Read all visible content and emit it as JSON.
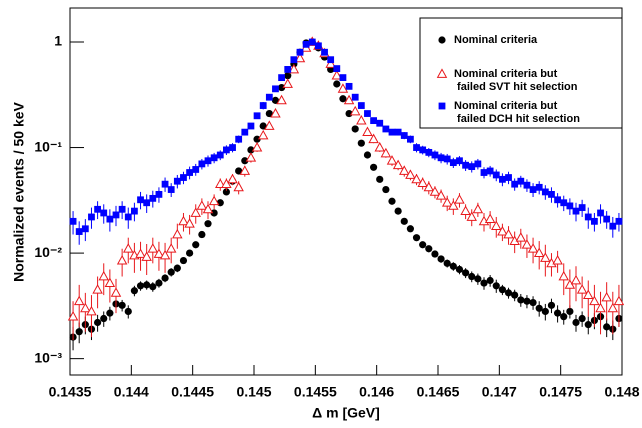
{
  "chart_data": {
    "type": "scatter",
    "x_label": "Δ m [GeV]",
    "y_label": "Normalized events / 50 keV",
    "x": [
      0.143525,
      0.143575,
      0.143625,
      0.143675,
      0.143725,
      0.143775,
      0.143825,
      0.143875,
      0.143925,
      0.143975,
      0.144025,
      0.144075,
      0.144125,
      0.144175,
      0.144225,
      0.144275,
      0.144325,
      0.144375,
      0.144425,
      0.144475,
      0.144525,
      0.144575,
      0.144625,
      0.144675,
      0.144725,
      0.144775,
      0.144825,
      0.144875,
      0.144925,
      0.144975,
      0.145025,
      0.145075,
      0.145125,
      0.145175,
      0.145225,
      0.145275,
      0.145325,
      0.145375,
      0.145425,
      0.145475,
      0.145525,
      0.145575,
      0.145625,
      0.145675,
      0.145725,
      0.145775,
      0.145825,
      0.145875,
      0.145925,
      0.145975,
      0.146025,
      0.146075,
      0.146125,
      0.146175,
      0.146225,
      0.146275,
      0.146325,
      0.146375,
      0.146425,
      0.146475,
      0.146525,
      0.146575,
      0.146625,
      0.146675,
      0.146725,
      0.146775,
      0.146825,
      0.146875,
      0.146925,
      0.146975,
      0.147025,
      0.147075,
      0.147125,
      0.147175,
      0.147225,
      0.147275,
      0.147325,
      0.147375,
      0.147425,
      0.147475,
      0.147525,
      0.147575,
      0.147625,
      0.147675,
      0.147725,
      0.147775,
      0.147825,
      0.147875,
      0.147925,
      0.147975
    ],
    "series": [
      {
        "name": "Nominal criteria",
        "color": "#000000",
        "marker": "circle",
        "values": [
          0.0016,
          0.0018,
          0.0021,
          0.0019,
          0.0022,
          0.0024,
          0.0027,
          0.0033,
          0.0032,
          0.0028,
          0.0044,
          0.0049,
          0.005,
          0.0048,
          0.0052,
          0.0058,
          0.0066,
          0.0072,
          0.0085,
          0.01,
          0.012,
          0.015,
          0.019,
          0.024,
          0.03,
          0.038,
          0.048,
          0.06,
          0.075,
          0.095,
          0.12,
          0.16,
          0.21,
          0.28,
          0.37,
          0.48,
          0.62,
          0.8,
          0.98,
          1.0,
          0.88,
          0.72,
          0.55,
          0.4,
          0.29,
          0.21,
          0.15,
          0.11,
          0.085,
          0.065,
          0.05,
          0.04,
          0.031,
          0.025,
          0.02,
          0.017,
          0.014,
          0.012,
          0.011,
          0.0098,
          0.0088,
          0.008,
          0.0075,
          0.007,
          0.0065,
          0.006,
          0.0057,
          0.0052,
          0.0055,
          0.0049,
          0.0045,
          0.0042,
          0.004,
          0.0036,
          0.0035,
          0.0034,
          0.003,
          0.0028,
          0.0032,
          0.0027,
          0.0025,
          0.0028,
          0.0022,
          0.0024,
          0.0021,
          0.0023,
          0.0025,
          0.002,
          0.0019,
          0.0024
        ],
        "errors": [
          0.0004,
          0.0004,
          0.0004,
          0.0004,
          0.0004,
          0.0004,
          0.0004,
          0.0004,
          0.0004,
          0.0004,
          0.0005,
          0.0005,
          0.0005,
          0.0005,
          0.0005,
          0.0005,
          0.0006,
          0.0006,
          0.0006,
          0.0007,
          0.0008,
          0.0009,
          0.001,
          0.001,
          0.001,
          0.001,
          0.002,
          0.002,
          0.002,
          0.002,
          0.003,
          0.003,
          0.004,
          0.005,
          0.006,
          0.007,
          0.008,
          0.01,
          0.01,
          0.01,
          0.01,
          0.01,
          0.008,
          0.007,
          0.005,
          0.004,
          0.004,
          0.003,
          0.003,
          0.002,
          0.002,
          0.002,
          0.001,
          0.001,
          0.001,
          0.001,
          0.001,
          0.0008,
          0.0008,
          0.0007,
          0.0007,
          0.0007,
          0.0007,
          0.0007,
          0.0007,
          0.0007,
          0.0007,
          0.0007,
          0.0007,
          0.0007,
          0.0005,
          0.0005,
          0.0005,
          0.0005,
          0.0005,
          0.0005,
          0.0005,
          0.0005,
          0.0005,
          0.0005,
          0.0004,
          0.0004,
          0.0004,
          0.0004,
          0.0004,
          0.0004,
          0.0004,
          0.0004,
          0.0004,
          0.0004
        ]
      },
      {
        "name": "Nominal criteria but\n failed SVT hit selection",
        "color": "#e8171b",
        "marker": "triangle",
        "values": [
          0.0025,
          0.0035,
          0.003,
          0.0028,
          0.0045,
          0.006,
          0.0052,
          0.0042,
          0.0085,
          0.011,
          0.0095,
          0.0098,
          0.0092,
          0.011,
          0.0098,
          0.0095,
          0.011,
          0.015,
          0.02,
          0.019,
          0.024,
          0.028,
          0.026,
          0.031,
          0.045,
          0.045,
          0.05,
          0.042,
          0.06,
          0.08,
          0.1,
          0.13,
          0.16,
          0.21,
          0.28,
          0.4,
          0.55,
          0.7,
          0.88,
          1.0,
          0.92,
          0.78,
          0.62,
          0.48,
          0.36,
          0.28,
          0.22,
          0.18,
          0.14,
          0.12,
          0.1,
          0.088,
          0.075,
          0.068,
          0.06,
          0.055,
          0.05,
          0.046,
          0.042,
          0.038,
          0.035,
          0.03,
          0.028,
          0.032,
          0.025,
          0.022,
          0.026,
          0.02,
          0.021,
          0.018,
          0.016,
          0.015,
          0.013,
          0.014,
          0.012,
          0.011,
          0.01,
          0.009,
          0.008,
          0.0085,
          0.006,
          0.005,
          0.0055,
          0.0045,
          0.004,
          0.0035,
          0.003,
          0.0038,
          0.003,
          0.0035
        ],
        "errors": [
          0.001,
          0.0015,
          0.0012,
          0.0012,
          0.0015,
          0.002,
          0.0018,
          0.0015,
          0.0025,
          0.003,
          0.003,
          0.003,
          0.003,
          0.003,
          0.003,
          0.003,
          0.003,
          0.004,
          0.004,
          0.004,
          0.005,
          0.005,
          0.005,
          0.005,
          0.006,
          0.006,
          0.006,
          0.006,
          0.007,
          0.008,
          0.009,
          0.01,
          0.01,
          0.01,
          0.02,
          0.02,
          0.02,
          0.03,
          0.03,
          0.03,
          0.03,
          0.03,
          0.02,
          0.02,
          0.02,
          0.02,
          0.01,
          0.01,
          0.01,
          0.01,
          0.009,
          0.008,
          0.008,
          0.007,
          0.007,
          0.006,
          0.006,
          0.006,
          0.006,
          0.005,
          0.005,
          0.005,
          0.005,
          0.005,
          0.004,
          0.004,
          0.004,
          0.004,
          0.004,
          0.004,
          0.003,
          0.003,
          0.003,
          0.003,
          0.003,
          0.003,
          0.003,
          0.003,
          0.002,
          0.002,
          0.002,
          0.002,
          0.002,
          0.0015,
          0.0015,
          0.0015,
          0.0013,
          0.0015,
          0.0013,
          0.0015
        ]
      },
      {
        "name": "Nominal criteria but\n failed DCH hit selection",
        "color": "#0000ff",
        "marker": "square",
        "values": [
          0.02,
          0.016,
          0.017,
          0.022,
          0.026,
          0.024,
          0.021,
          0.023,
          0.026,
          0.022,
          0.025,
          0.032,
          0.03,
          0.033,
          0.036,
          0.045,
          0.04,
          0.048,
          0.052,
          0.058,
          0.062,
          0.07,
          0.075,
          0.08,
          0.085,
          0.095,
          0.1,
          0.12,
          0.14,
          0.16,
          0.2,
          0.25,
          0.3,
          0.36,
          0.46,
          0.55,
          0.68,
          0.8,
          0.95,
          1.0,
          0.92,
          0.8,
          0.68,
          0.56,
          0.46,
          0.38,
          0.3,
          0.25,
          0.21,
          0.18,
          0.17,
          0.15,
          0.14,
          0.14,
          0.13,
          0.12,
          0.1,
          0.095,
          0.09,
          0.085,
          0.08,
          0.078,
          0.072,
          0.075,
          0.068,
          0.066,
          0.07,
          0.058,
          0.06,
          0.055,
          0.05,
          0.052,
          0.045,
          0.048,
          0.044,
          0.04,
          0.042,
          0.038,
          0.036,
          0.032,
          0.03,
          0.028,
          0.025,
          0.027,
          0.022,
          0.02,
          0.024,
          0.021,
          0.018,
          0.02
        ],
        "errors": [
          0.005,
          0.004,
          0.004,
          0.005,
          0.005,
          0.005,
          0.005,
          0.005,
          0.005,
          0.005,
          0.005,
          0.006,
          0.006,
          0.006,
          0.006,
          0.007,
          0.006,
          0.007,
          0.007,
          0.008,
          0.008,
          0.008,
          0.009,
          0.009,
          0.009,
          0.01,
          0.01,
          0.01,
          0.01,
          0.01,
          0.01,
          0.02,
          0.02,
          0.02,
          0.02,
          0.02,
          0.03,
          0.03,
          0.03,
          0.03,
          0.03,
          0.03,
          0.02,
          0.02,
          0.02,
          0.02,
          0.02,
          0.01,
          0.01,
          0.01,
          0.01,
          0.01,
          0.01,
          0.01,
          0.01,
          0.01,
          0.01,
          0.009,
          0.009,
          0.009,
          0.009,
          0.009,
          0.008,
          0.008,
          0.008,
          0.008,
          0.008,
          0.007,
          0.007,
          0.007,
          0.007,
          0.007,
          0.006,
          0.006,
          0.006,
          0.006,
          0.006,
          0.006,
          0.006,
          0.005,
          0.005,
          0.005,
          0.005,
          0.005,
          0.005,
          0.004,
          0.005,
          0.004,
          0.004,
          0.004
        ]
      }
    ],
    "xlim": [
      0.1435,
      0.148
    ],
    "xticks": [
      0.1435,
      0.144,
      0.1445,
      0.145,
      0.1455,
      0.146,
      0.1465,
      0.147,
      0.1475,
      0.148
    ],
    "ylim": [
      0.0007,
      2.1
    ],
    "log_y": true,
    "yticks": [
      {
        "value": 0.001,
        "label": "10⁻³"
      },
      {
        "value": 0.01,
        "label": "10⁻²"
      },
      {
        "value": 0.1,
        "label": "10⁻¹"
      },
      1
    ],
    "legend": "upper right"
  }
}
